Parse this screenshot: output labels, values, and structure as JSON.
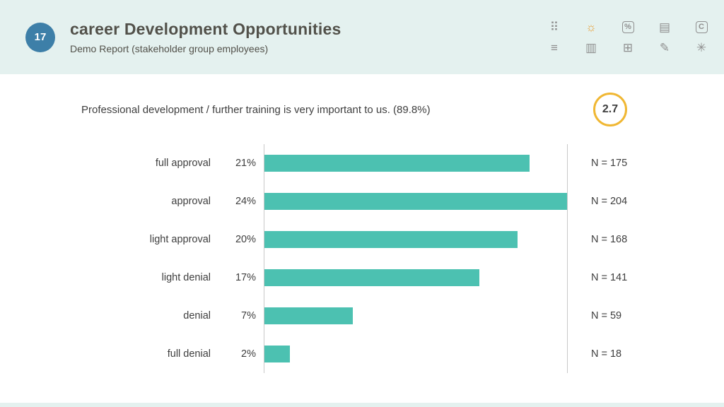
{
  "header": {
    "slide_number": "17",
    "title": "career Development Opportunities",
    "subtitle": "Demo Report (stakeholder group employees)",
    "icons": [
      {
        "name": "chart-settings-icon",
        "glyph": "⠿"
      },
      {
        "name": "sun-chart-icon",
        "glyph": "☼",
        "color": "#e8a23c"
      },
      {
        "name": "percent-icon",
        "glyph": "%",
        "boxed": true
      },
      {
        "name": "text-report-icon",
        "glyph": "▤"
      },
      {
        "name": "c-icon",
        "glyph": "C",
        "boxed": true
      },
      {
        "name": "sort-icon",
        "glyph": "≡"
      },
      {
        "name": "document-icon",
        "glyph": "▥"
      },
      {
        "name": "table-icon",
        "glyph": "⊞"
      },
      {
        "name": "edit-icon",
        "glyph": "✎"
      },
      {
        "name": "asterisk-icon",
        "glyph": "✳"
      }
    ]
  },
  "question": {
    "text": "Professional development / further training is very important to us. (89.8%)",
    "score": "2.7"
  },
  "chart_data": {
    "type": "bar",
    "orientation": "horizontal",
    "title": "Professional development / further training is very important to us. (89.8%)",
    "mean_score": "2.7",
    "categories": [
      "full approval",
      "approval",
      "light approval",
      "light denial",
      "denial",
      "full denial"
    ],
    "values": [
      21,
      24,
      20,
      17,
      7,
      2
    ],
    "value_labels": [
      "21%",
      "24%",
      "20%",
      "17%",
      "7%",
      "2%"
    ],
    "series_n": [
      175,
      204,
      168,
      141,
      59,
      18
    ],
    "n_labels": [
      "N = 175",
      "N = 204",
      "N = 168",
      "N = 141",
      "N = 59",
      "N = 18"
    ],
    "bar_color": "#4cc1b1",
    "xlim": [
      0,
      24
    ],
    "grid": "two vertical boundary lines only",
    "legend": "none"
  },
  "colors": {
    "header_bg": "#e4f1ef",
    "slide_number_bg": "#3d7fa8",
    "accent_teal": "#4cc1b1",
    "score_ring": "#f0b733",
    "icon_gray": "#8f8f8f",
    "sun_icon_orange": "#e8a23c"
  }
}
